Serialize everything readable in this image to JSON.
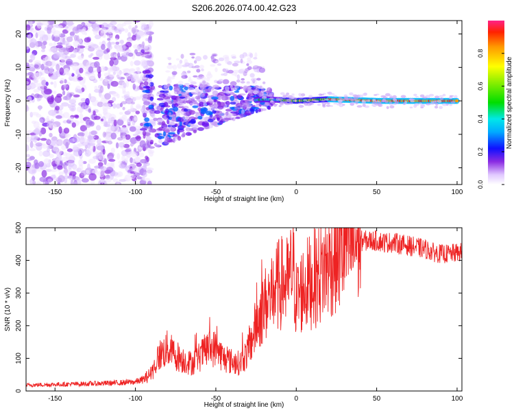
{
  "title": "S206.2026.074.00.42.G23",
  "chart_data": [
    {
      "type": "heatmap",
      "xlabel": "Height of straight line (km)",
      "ylabel": "Frequency (Hz)",
      "xlim": [
        -168,
        103
      ],
      "ylim": [
        -25,
        24
      ],
      "xticks": [
        -150,
        -100,
        -50,
        0,
        50,
        100
      ],
      "yticks": [
        -20,
        -10,
        0,
        10,
        20
      ],
      "colorbar": {
        "label": "Normalized spectral amplitude",
        "range": [
          0,
          1
        ],
        "ticks": [
          0.0,
          0.2,
          0.4,
          0.6,
          0.8
        ]
      },
      "ridge": {
        "description": "dominant spectral line",
        "points": [
          [
            -90,
            -5
          ],
          [
            -60,
            -2
          ],
          [
            -30,
            0
          ],
          [
            -20,
            0.5
          ],
          [
            0,
            0
          ],
          [
            20,
            0.5
          ],
          [
            50,
            0
          ],
          [
            100,
            0
          ]
        ]
      }
    },
    {
      "type": "line",
      "xlabel": "Height of straight line (km)",
      "ylabel": "SNR (10 * v/v)",
      "xlim": [
        -168,
        103
      ],
      "ylim": [
        0,
        500
      ],
      "xticks": [
        -150,
        -100,
        -50,
        0,
        50,
        100
      ],
      "yticks": [
        0,
        100,
        200,
        300,
        400,
        500
      ],
      "series": [
        {
          "name": "SNR",
          "color": "#ee2222",
          "x": [
            -168,
            -150,
            -130,
            -110,
            -100,
            -95,
            -90,
            -85,
            -80,
            -75,
            -70,
            -65,
            -60,
            -55,
            -50,
            -45,
            -40,
            -35,
            -30,
            -25,
            -22,
            -20,
            -15,
            -10,
            -5,
            -2,
            0,
            5,
            10,
            15,
            20,
            25,
            30,
            35,
            40,
            45,
            50,
            55,
            60,
            65,
            70,
            75,
            80,
            85,
            90,
            95,
            103
          ],
          "values": [
            18,
            20,
            22,
            25,
            28,
            35,
            55,
            110,
            130,
            110,
            95,
            85,
            105,
            130,
            130,
            100,
            90,
            85,
            120,
            200,
            240,
            260,
            300,
            330,
            330,
            380,
            280,
            320,
            340,
            360,
            390,
            420,
            440,
            455,
            460,
            460,
            460,
            455,
            455,
            450,
            445,
            440,
            435,
            425,
            420,
            420,
            425
          ]
        }
      ]
    }
  ]
}
